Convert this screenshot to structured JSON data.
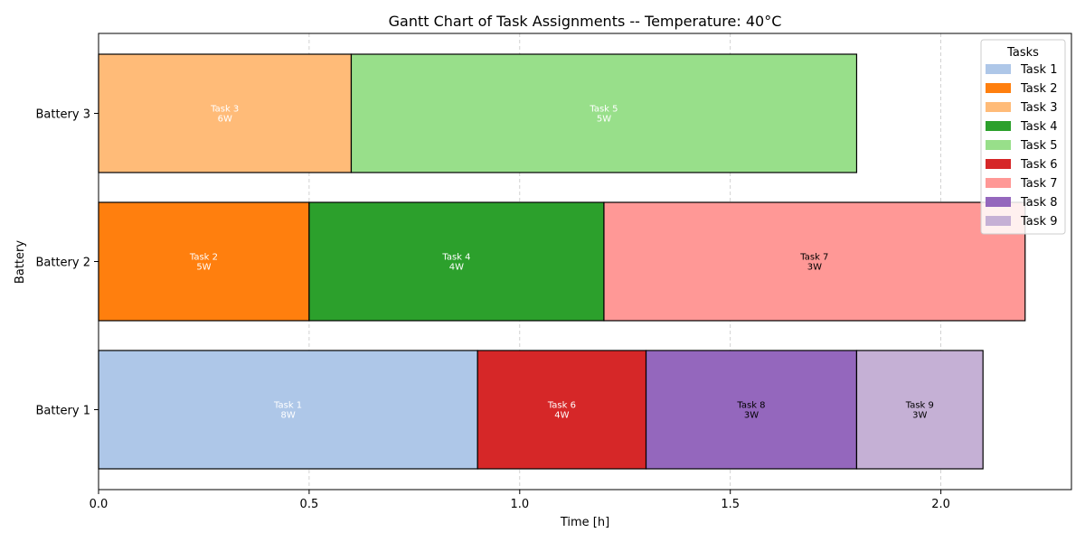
{
  "chart_data": {
    "type": "gantt",
    "title": "Gantt Chart of Task Assignments -- Temperature: 40°C",
    "xlabel": "Time [h]",
    "ylabel": "Battery",
    "xlim": [
      0,
      2.31
    ],
    "xticks": [
      {
        "value": 0.0,
        "label": "0.0"
      },
      {
        "value": 0.5,
        "label": "0.5"
      },
      {
        "value": 1.0,
        "label": "1.0"
      },
      {
        "value": 1.5,
        "label": "1.5"
      },
      {
        "value": 2.0,
        "label": "2.0"
      }
    ],
    "rows": [
      "Battery 1",
      "Battery 2",
      "Battery 3"
    ],
    "grid": "x-dashed",
    "legend": {
      "title": "Tasks",
      "position": "top-right",
      "entries": [
        {
          "name": "Task 1",
          "color": "#aec7e8"
        },
        {
          "name": "Task 2",
          "color": "#ff7f0e"
        },
        {
          "name": "Task 3",
          "color": "#ffbb78"
        },
        {
          "name": "Task 4",
          "color": "#2ca02c"
        },
        {
          "name": "Task 5",
          "color": "#98df8a"
        },
        {
          "name": "Task 6",
          "color": "#d62728"
        },
        {
          "name": "Task 7",
          "color": "#ff9896"
        },
        {
          "name": "Task 8",
          "color": "#9467bd"
        },
        {
          "name": "Task 9",
          "color": "#c5b0d5"
        }
      ]
    },
    "tasks": [
      {
        "name": "Task 1",
        "battery": "Battery 1",
        "start": 0.0,
        "end": 0.9,
        "power": "8W",
        "color": "#aec7e8",
        "text_color": "#ffffff"
      },
      {
        "name": "Task 6",
        "battery": "Battery 1",
        "start": 0.9,
        "end": 1.3,
        "power": "4W",
        "color": "#d62728",
        "text_color": "#ffffff"
      },
      {
        "name": "Task 8",
        "battery": "Battery 1",
        "start": 1.3,
        "end": 1.8,
        "power": "3W",
        "color": "#9467bd",
        "text_color": "#000000"
      },
      {
        "name": "Task 9",
        "battery": "Battery 1",
        "start": 1.8,
        "end": 2.1,
        "power": "3W",
        "color": "#c5b0d5",
        "text_color": "#000000"
      },
      {
        "name": "Task 2",
        "battery": "Battery 2",
        "start": 0.0,
        "end": 0.5,
        "power": "5W",
        "color": "#ff7f0e",
        "text_color": "#ffffff"
      },
      {
        "name": "Task 4",
        "battery": "Battery 2",
        "start": 0.5,
        "end": 1.2,
        "power": "4W",
        "color": "#2ca02c",
        "text_color": "#ffffff"
      },
      {
        "name": "Task 7",
        "battery": "Battery 2",
        "start": 1.2,
        "end": 2.2,
        "power": "3W",
        "color": "#ff9896",
        "text_color": "#000000"
      },
      {
        "name": "Task 3",
        "battery": "Battery 3",
        "start": 0.0,
        "end": 0.6,
        "power": "6W",
        "color": "#ffbb78",
        "text_color": "#ffffff"
      },
      {
        "name": "Task 5",
        "battery": "Battery 3",
        "start": 0.6,
        "end": 1.8,
        "power": "5W",
        "color": "#98df8a",
        "text_color": "#ffffff"
      }
    ]
  }
}
